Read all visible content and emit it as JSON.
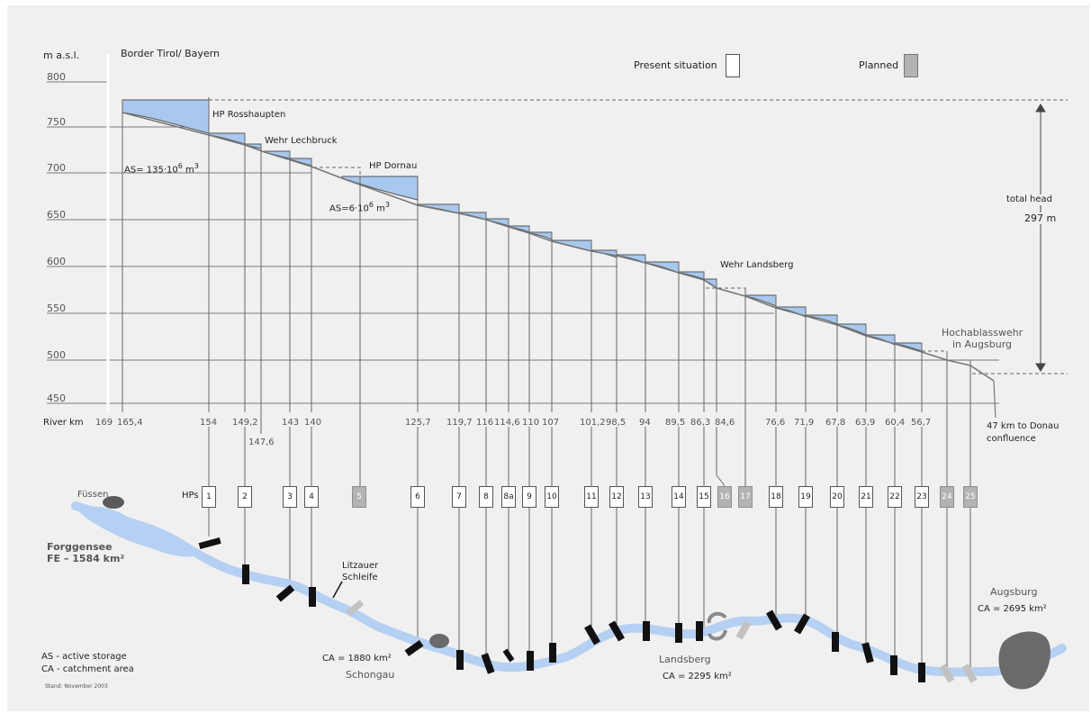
{
  "header": {
    "yaxis_unit": "m a.s.l.",
    "border_label": "Border Tirol/ Bayern",
    "legend_present": "Present situation",
    "legend_planned": "Planned"
  },
  "y_ticks": [
    "800",
    "750",
    "700",
    "650",
    "600",
    "550",
    "500",
    "450"
  ],
  "annotations": {
    "hp_rosshaupten": "HP Rosshaupten",
    "wehr_lechbruck": "Wehr Lechbruck",
    "hp_dornau": "HP Dornau",
    "as1": "AS= 135·10",
    "as1_exp": "6",
    "as1_unit": "m",
    "as1_unit_exp": "3",
    "as2": "AS=6·10",
    "as2_exp": "6",
    "as2_unit": "m",
    "as2_unit_exp": "3",
    "wehr_landsberg": "Wehr Landsberg",
    "hochablass_line1": "Hochablasswehr",
    "hochablass_line2": "in Augsburg",
    "total_head_label": "total head",
    "total_head_value": "297 m"
  },
  "river_km": {
    "label": "River km",
    "values": [
      "169",
      "165,4",
      "154",
      "149,2",
      "143",
      "140",
      "125,7",
      "119,7",
      "116",
      "114,6",
      "110",
      "107",
      "101,2",
      "98,5",
      "94",
      "89,5",
      "86,3",
      "84,6",
      "76,6",
      "71,9",
      "67,8",
      "63,9",
      "60,4",
      "56,7"
    ],
    "extra_value": "147,6",
    "confluence_line1": "47 km to Donau",
    "confluence_line2": "confluence"
  },
  "hps": {
    "label": "HPs",
    "items": [
      {
        "id": "1",
        "planned": false
      },
      {
        "id": "2",
        "planned": false
      },
      {
        "id": "3",
        "planned": false
      },
      {
        "id": "4",
        "planned": false
      },
      {
        "id": "5",
        "planned": true
      },
      {
        "id": "6",
        "planned": false
      },
      {
        "id": "7",
        "planned": false
      },
      {
        "id": "8",
        "planned": false
      },
      {
        "id": "8a",
        "planned": false
      },
      {
        "id": "9",
        "planned": false
      },
      {
        "id": "10",
        "planned": false
      },
      {
        "id": "11",
        "planned": false
      },
      {
        "id": "12",
        "planned": false
      },
      {
        "id": "13",
        "planned": false
      },
      {
        "id": "14",
        "planned": false
      },
      {
        "id": "15",
        "planned": false
      },
      {
        "id": "16",
        "planned": true
      },
      {
        "id": "17",
        "planned": true
      },
      {
        "id": "18",
        "planned": false
      },
      {
        "id": "19",
        "planned": false
      },
      {
        "id": "20",
        "planned": false
      },
      {
        "id": "21",
        "planned": false
      },
      {
        "id": "22",
        "planned": false
      },
      {
        "id": "23",
        "planned": false
      },
      {
        "id": "24",
        "planned": true
      },
      {
        "id": "25",
        "planned": true
      }
    ]
  },
  "map": {
    "fuessen": "Füssen",
    "forggensee_line1": "Forggensee",
    "forggensee_line2": "FE – 1584 km²",
    "litzauer_line1": "Litzauer",
    "litzauer_line2": "Schleife",
    "ca_schongau": "CA = 1880 km²",
    "schongau": "Schongau",
    "landsberg": "Landsberg",
    "ca_landsberg": "CA = 2295 km²",
    "augsburg": "Augsburg",
    "ca_augsburg": "CA = 2695 km²"
  },
  "footer": {
    "legend_as": "AS - active storage",
    "legend_ca": "CA - catchment area",
    "stand": "Stand: November 2003"
  },
  "colors": {
    "water": "#a8c8ee",
    "river": "#b5d0f2",
    "planned": "#b3b3b3",
    "lines": "#777777"
  }
}
